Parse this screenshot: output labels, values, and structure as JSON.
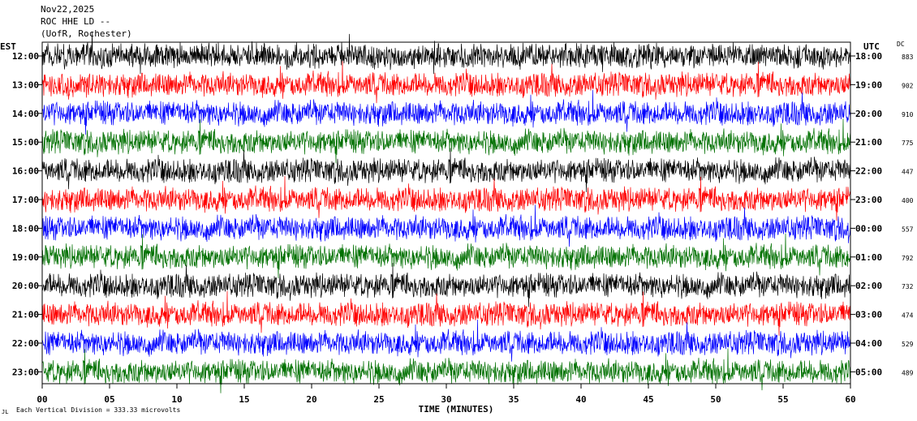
{
  "header": {
    "date": "Nov22,2025",
    "channel": "ROC HHE LD --",
    "location": "(UofR, Rochester)"
  },
  "left_axis_label": "EST",
  "right_axis_label": "UTC",
  "dc_label": "DC",
  "footer": {
    "scale_note": "Each Vertical Division = 333.33 microvolts",
    "corner_mark": "JL"
  },
  "chart_data": {
    "type": "line",
    "xlabel": "TIME (MINUTES)",
    "xlim": [
      0,
      60
    ],
    "x_ticks": [
      "00",
      "05",
      "10",
      "15",
      "20",
      "25",
      "30",
      "35",
      "40",
      "45",
      "50",
      "55",
      "60"
    ],
    "trace_colors": [
      "#000000",
      "#ff0000",
      "#0000ff",
      "#007000"
    ],
    "rows": [
      {
        "est": "12:00",
        "utc": "18:00",
        "dc": "883"
      },
      {
        "est": "13:00",
        "utc": "19:00",
        "dc": "902"
      },
      {
        "est": "14:00",
        "utc": "20:00",
        "dc": "910"
      },
      {
        "est": "15:00",
        "utc": "21:00",
        "dc": "775"
      },
      {
        "est": "16:00",
        "utc": "22:00",
        "dc": "447"
      },
      {
        "est": "17:00",
        "utc": "23:00",
        "dc": "400"
      },
      {
        "est": "18:00",
        "utc": "00:00",
        "dc": "557"
      },
      {
        "est": "19:00",
        "utc": "01:00",
        "dc": "792"
      },
      {
        "est": "20:00",
        "utc": "02:00",
        "dc": "732"
      },
      {
        "est": "21:00",
        "utc": "03:00",
        "dc": "474"
      },
      {
        "est": "22:00",
        "utc": "04:00",
        "dc": "529"
      },
      {
        "est": "23:00",
        "utc": "05:00",
        "dc": "489"
      }
    ]
  }
}
